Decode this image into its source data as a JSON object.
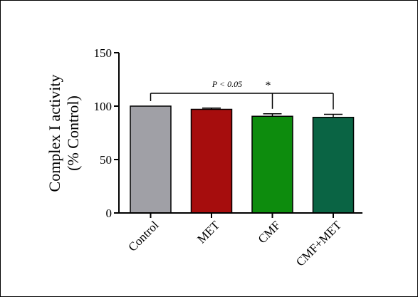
{
  "chart_data": {
    "type": "bar",
    "title": "",
    "xlabel": "",
    "ylabel_lines": [
      "Complex I activity",
      "(% Control)"
    ],
    "ylim": [
      0,
      150
    ],
    "yticks": [
      "0",
      "50",
      "100",
      "150"
    ],
    "grid": false,
    "categories": [
      "Control",
      "MET",
      "CMF",
      "CMF+MET"
    ],
    "values": [
      100,
      97,
      90.5,
      89.5
    ],
    "errors": [
      0,
      1.2,
      2.3,
      2.8
    ],
    "colors": [
      "#a0a0a6",
      "#a60d0d",
      "#0d8c0d",
      "#0a6444"
    ],
    "annotation": {
      "text": "P < 0.05",
      "marker": "*",
      "bracket_level": 112,
      "targets": [
        "Control",
        "CMF",
        "CMF+MET"
      ]
    }
  }
}
